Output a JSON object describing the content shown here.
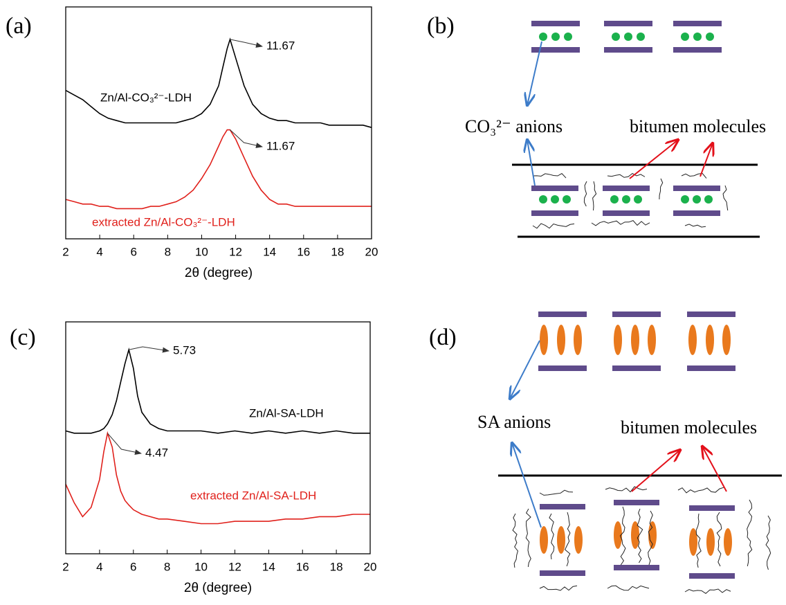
{
  "chart_data": [
    {
      "type": "line",
      "label": "(a)",
      "xlabel": "2θ (degree)",
      "x": [
        2,
        2.5,
        3,
        3.5,
        4,
        4.5,
        5,
        5.5,
        6,
        6.5,
        7,
        7.5,
        8,
        8.5,
        9,
        9.5,
        10,
        10.5,
        11,
        11.25,
        11.5,
        11.67,
        12,
        12.5,
        13,
        13.5,
        14,
        14.5,
        15,
        15.5,
        16,
        16.5,
        17,
        17.5,
        18,
        18.5,
        19,
        19.5,
        20
      ],
      "series": [
        {
          "name": "Zn/Al-CO₃²⁻-LDH",
          "color": "#000000",
          "values": [
            64,
            62,
            60,
            57,
            54,
            52,
            51,
            50,
            50,
            50,
            50,
            50,
            50,
            50,
            51,
            52,
            54,
            58,
            66,
            74,
            82,
            86,
            78,
            66,
            58,
            54,
            52,
            51,
            51,
            50,
            50,
            50,
            50,
            49,
            49,
            49,
            49,
            49,
            48
          ]
        },
        {
          "name": "extracted Zn/Al-CO₃²⁻-LDH",
          "color": "#e0201b",
          "values": [
            17,
            16,
            15,
            15,
            14,
            14,
            13,
            13,
            13,
            13,
            14,
            14,
            15,
            16,
            18,
            21,
            26,
            32,
            40,
            44,
            47,
            47,
            43,
            35,
            27,
            21,
            17,
            15,
            15,
            14,
            14,
            14,
            14,
            14,
            14,
            14,
            14,
            14,
            14
          ]
        }
      ],
      "annotations": [
        {
          "x": 11.67,
          "y": 86
        },
        {
          "x": 11.67,
          "y": 47
        }
      ],
      "xlim": [
        2,
        20
      ],
      "xticks": [
        2,
        4,
        6,
        8,
        10,
        12,
        14,
        16,
        18,
        20
      ],
      "ylim": [
        0,
        100
      ]
    },
    {
      "type": "line",
      "label": "(c)",
      "xlabel": "2θ (degree)",
      "x": [
        2,
        2.5,
        3,
        3.5,
        4,
        4.25,
        4.47,
        4.75,
        5,
        5.25,
        5.5,
        5.73,
        6,
        6.25,
        6.5,
        7,
        7.5,
        8,
        9,
        10,
        11,
        12,
        13,
        14,
        15,
        16,
        17,
        18,
        19,
        20
      ],
      "series": [
        {
          "name": "Zn/Al-SA-LDH",
          "color": "#000000",
          "values": [
            53,
            52,
            52,
            52,
            53,
            54,
            56,
            60,
            66,
            74,
            82,
            88,
            80,
            68,
            61,
            56,
            54,
            53,
            53,
            53,
            52,
            53,
            52,
            53,
            52,
            53,
            52,
            53,
            52,
            52
          ]
        },
        {
          "name": "extracted Zn/Al-SA-LDH",
          "color": "#e0201b",
          "values": [
            30,
            22,
            16,
            20,
            32,
            44,
            52,
            46,
            34,
            27,
            23,
            21,
            19,
            18,
            17,
            16,
            15,
            15,
            14,
            13,
            13,
            14,
            14,
            14,
            15,
            15,
            16,
            16,
            17,
            17
          ]
        }
      ],
      "annotations": [
        {
          "x": 5.73,
          "y": 88
        },
        {
          "x": 4.47,
          "y": 52
        }
      ],
      "xlim": [
        2,
        20
      ],
      "xticks": [
        2,
        4,
        6,
        8,
        10,
        12,
        14,
        16,
        18,
        20
      ],
      "ylim": [
        0,
        100
      ]
    }
  ],
  "diagram_b": {
    "label": "(b)",
    "anion_label": "CO₃²⁻ anions",
    "molecule_label": "bitumen molecules"
  },
  "diagram_d": {
    "label": "(d)",
    "anion_label": "SA anions",
    "molecule_label": "bitumen molecules"
  }
}
